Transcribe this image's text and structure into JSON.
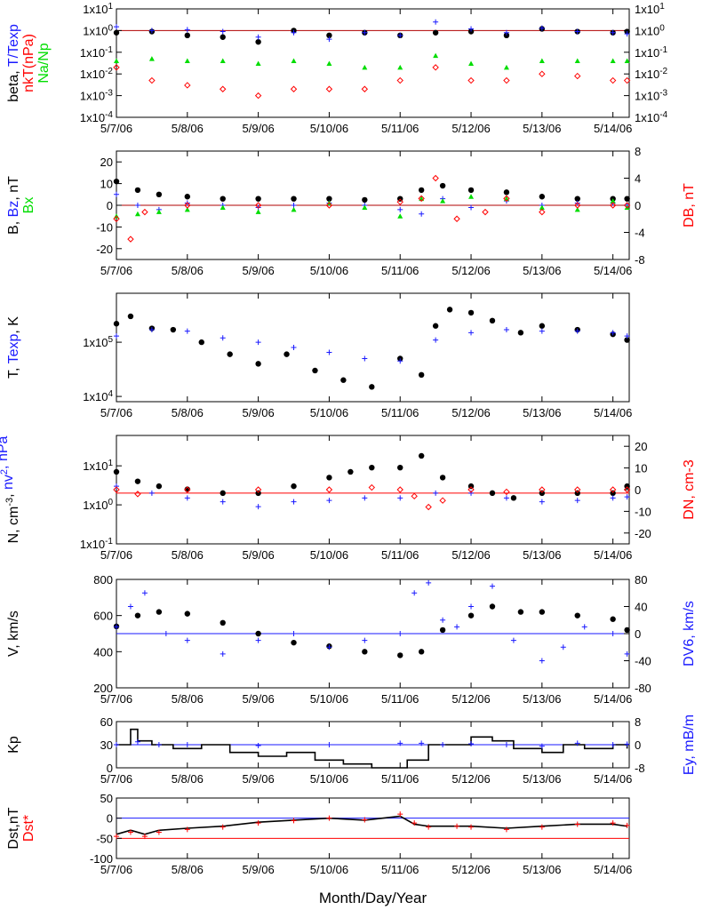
{
  "x_axis": {
    "title": "Month/Day/Year",
    "tick_labels": [
      "5/7/06",
      "5/8/06",
      "5/9/06",
      "5/10/06",
      "5/11/06",
      "5/12/06",
      "5/13/06",
      "5/14/06"
    ],
    "range_days": [
      0,
      7.23
    ]
  },
  "colors": {
    "black": "#000000",
    "blue": "#1a1aff",
    "red": "#ff0000",
    "green": "#00dd00",
    "darkred": "#b00000"
  },
  "chart_data": [
    {
      "name": "beta panel",
      "type": "scatter",
      "ylabel_parts": [
        {
          "text": "beta, ",
          "color": "black",
          "col": 0
        },
        {
          "text": "T/Texp",
          "color": "blue",
          "col": 0
        },
        {
          "text": "nkT(nPa)",
          "color": "red",
          "col": 1
        },
        {
          "text": "Na/Np",
          "color": "green",
          "col": 2
        }
      ],
      "y_log": true,
      "ylim": [
        0.0001,
        10
      ],
      "yticks_left": [
        "1x10-4",
        "1x10-3",
        "1x10-2",
        "1x10-1",
        "1x100",
        "1x101"
      ],
      "yticks_right": [
        "1x10-4",
        "1x10-3",
        "1x10-2",
        "1x10-1",
        "1x100",
        "1x101"
      ],
      "hline": {
        "y": 1,
        "color": "darkred"
      },
      "series": [
        {
          "color": "black",
          "marker": "dot",
          "x": [
            0,
            0.5,
            1,
            1.5,
            2,
            2.5,
            3,
            3.5,
            4,
            4.5,
            5,
            5.5,
            6,
            6.5,
            7,
            7.2
          ],
          "y": [
            0.8,
            0.9,
            0.6,
            0.5,
            0.3,
            1.0,
            0.6,
            0.8,
            0.6,
            0.8,
            0.9,
            0.6,
            1.2,
            0.9,
            0.8,
            0.9
          ]
        },
        {
          "color": "blue",
          "marker": "plus",
          "x": [
            0,
            0.5,
            1,
            1.5,
            2,
            2.5,
            3,
            3.5,
            4,
            4.5,
            5,
            5.5,
            6,
            6.5,
            7,
            7.2
          ],
          "y": [
            1.5,
            1.0,
            1.1,
            0.9,
            0.5,
            0.8,
            0.4,
            0.8,
            0.6,
            2.5,
            1.2,
            0.8,
            1.3,
            0.9,
            0.8,
            0.7
          ]
        },
        {
          "color": "red",
          "marker": "diamond",
          "x": [
            0,
            0.5,
            1,
            1.5,
            2,
            2.5,
            3,
            3.5,
            4,
            4.5,
            5,
            5.5,
            6,
            6.5,
            7,
            7.2
          ],
          "y": [
            0.02,
            0.005,
            0.003,
            0.002,
            0.001,
            0.002,
            0.002,
            0.002,
            0.005,
            0.02,
            0.005,
            0.005,
            0.01,
            0.008,
            0.005,
            0.005
          ]
        },
        {
          "color": "green",
          "marker": "tri",
          "x": [
            0,
            0.5,
            1,
            1.5,
            2,
            2.5,
            3,
            3.5,
            4,
            4.5,
            5,
            5.5,
            6,
            6.5,
            7,
            7.2
          ],
          "y": [
            0.04,
            0.05,
            0.04,
            0.04,
            0.03,
            0.04,
            0.03,
            0.02,
            0.02,
            0.07,
            0.03,
            0.02,
            0.04,
            0.04,
            0.04,
            0.04
          ]
        }
      ]
    },
    {
      "name": "B panel",
      "type": "scatter",
      "ylabel_parts": [
        {
          "text": "B, ",
          "color": "black",
          "col": 0
        },
        {
          "text": "Bz",
          "color": "blue",
          "col": 0
        },
        {
          "text": ", nT",
          "color": "black",
          "col": 0
        },
        {
          "text": "Bx",
          "color": "green",
          "col": 1
        }
      ],
      "ylabel_right": {
        "text": "DB, nT",
        "color": "red"
      },
      "y_log": false,
      "ylim": [
        -25,
        25
      ],
      "yticks_left": [
        -20,
        -10,
        0,
        10,
        20
      ],
      "ylim_right": [
        -8,
        8
      ],
      "yticks_right": [
        -8,
        -4,
        0,
        4,
        8
      ],
      "hline": {
        "y": 0,
        "color": "darkred"
      },
      "series": [
        {
          "color": "black",
          "marker": "dot",
          "x": [
            0,
            0.3,
            0.6,
            1,
            1.5,
            2,
            2.5,
            3,
            3.5,
            4,
            4.3,
            4.6,
            5,
            5.5,
            6,
            6.5,
            7,
            7.2
          ],
          "y": [
            11,
            7,
            5,
            4,
            3,
            3,
            3,
            3,
            2.5,
            3,
            7,
            9,
            7,
            6,
            4,
            3,
            3,
            3
          ]
        },
        {
          "color": "blue",
          "marker": "plus",
          "x": [
            0,
            0.3,
            0.6,
            1,
            1.5,
            2,
            2.5,
            3,
            3.5,
            4,
            4.3,
            4.6,
            5,
            5.5,
            6,
            6.5,
            7,
            7.2
          ],
          "y": [
            5,
            0,
            -2,
            1,
            0,
            -1,
            0,
            1,
            0,
            -2,
            -4,
            3,
            -1,
            2,
            0,
            1,
            1,
            0
          ]
        },
        {
          "color": "green",
          "marker": "tri",
          "x": [
            0,
            0.3,
            0.6,
            1,
            1.5,
            2,
            2.5,
            3,
            3.5,
            4,
            4.3,
            4.6,
            5,
            5.5,
            6,
            6.5,
            7,
            7.2
          ],
          "y": [
            -5,
            -4,
            -3,
            -2,
            -1,
            -3,
            -2,
            1,
            -1,
            -5,
            3,
            2,
            4,
            3,
            -1,
            -2,
            2,
            -1
          ]
        },
        {
          "color": "red",
          "marker": "diamond",
          "axis": "right",
          "x": [
            0,
            0.2,
            0.4,
            1,
            2,
            3,
            4,
            4.3,
            4.5,
            4.8,
            5.2,
            5.5,
            6,
            6.5,
            7,
            7.2
          ],
          "y": [
            -2,
            -5,
            -1,
            0,
            0,
            0,
            0.5,
            1,
            4,
            -2,
            -1,
            1,
            -1,
            0,
            0,
            0
          ]
        }
      ]
    },
    {
      "name": "T panel",
      "type": "scatter",
      "ylabel_parts": [
        {
          "text": "T, ",
          "color": "black",
          "col": 0
        },
        {
          "text": "Texp",
          "color": "blue",
          "col": 0
        },
        {
          "text": ", K",
          "color": "black",
          "col": 0
        }
      ],
      "y_log": true,
      "ylim": [
        8000,
        800000
      ],
      "yticks_left": [
        "1x104",
        "1x105"
      ],
      "yticks_left_values": [
        10000,
        100000
      ],
      "series": [
        {
          "color": "black",
          "marker": "dot",
          "x": [
            0,
            0.2,
            0.5,
            0.8,
            1.2,
            1.6,
            2,
            2.4,
            2.8,
            3.2,
            3.6,
            4,
            4.3,
            4.5,
            4.7,
            5,
            5.3,
            5.7,
            6,
            6.5,
            7,
            7.2
          ],
          "y": [
            220000,
            300000,
            180000,
            170000,
            100000,
            60000,
            40000,
            60000,
            30000,
            20000,
            15000,
            50000,
            25000,
            200000,
            400000,
            350000,
            250000,
            150000,
            200000,
            170000,
            140000,
            110000
          ]
        },
        {
          "color": "blue",
          "marker": "plus",
          "x": [
            0,
            0.5,
            1,
            1.5,
            2,
            2.5,
            3,
            3.5,
            4,
            4.5,
            5,
            5.5,
            6,
            6.5,
            7,
            7.2
          ],
          "y": [
            130000,
            170000,
            160000,
            120000,
            100000,
            80000,
            65000,
            50000,
            45000,
            110000,
            150000,
            170000,
            160000,
            160000,
            150000,
            130000
          ]
        }
      ]
    },
    {
      "name": "N panel",
      "type": "scatter",
      "ylabel_parts": [
        {
          "text": "N, cm",
          "color": "black",
          "col": 0
        },
        {
          "text": "-3",
          "color": "black",
          "col": 0,
          "sup": true
        },
        {
          "text": ", ",
          "color": "black",
          "col": 0
        },
        {
          "text": "nv",
          "color": "blue",
          "col": 0
        },
        {
          "text": "2",
          "color": "blue",
          "col": 0,
          "sup": true
        },
        {
          "text": ", nPa",
          "color": "blue",
          "col": 0
        }
      ],
      "ylabel_right": {
        "text": "DN, cm-3",
        "color": "red"
      },
      "y_log": true,
      "ylim": [
        0.1,
        60
      ],
      "yticks_left": [
        "1x10-1",
        "1x100",
        "1x101"
      ],
      "yticks_left_values": [
        0.1,
        1,
        10
      ],
      "ylim_right": [
        -25,
        25
      ],
      "yticks_right": [
        -20,
        -10,
        0,
        10,
        20
      ],
      "hline": {
        "y": 2,
        "color": "red"
      },
      "series": [
        {
          "color": "black",
          "marker": "dot",
          "x": [
            0,
            0.3,
            0.6,
            1,
            1.5,
            2,
            2.5,
            3,
            3.3,
            3.6,
            4,
            4.3,
            4.6,
            5,
            5.3,
            5.6,
            6,
            6.5,
            7,
            7.2
          ],
          "y": [
            7,
            4,
            3,
            2.5,
            2,
            2,
            3,
            5,
            7,
            9,
            9,
            18,
            5,
            3,
            2,
            1.5,
            2,
            2,
            2,
            3
          ]
        },
        {
          "color": "blue",
          "marker": "plus",
          "x": [
            0,
            0.5,
            1,
            1.5,
            2,
            2.5,
            3,
            3.5,
            4,
            4.5,
            5,
            5.5,
            6,
            6.5,
            7,
            7.2
          ],
          "y": [
            3,
            2,
            1.5,
            1.2,
            0.9,
            1.2,
            1.3,
            1.5,
            1.5,
            2,
            2,
            1.5,
            1.2,
            1.3,
            1.5,
            1.6
          ]
        },
        {
          "color": "red",
          "marker": "diamond",
          "axis": "right",
          "x": [
            0,
            0.3,
            1,
            2,
            3,
            3.6,
            4,
            4.2,
            4.4,
            4.6,
            5,
            5.5,
            6,
            6.5,
            7,
            7.2
          ],
          "y": [
            0,
            -2,
            0,
            0,
            0,
            1,
            0,
            -3,
            -8,
            -5,
            0,
            -1,
            0,
            0,
            0,
            0
          ]
        }
      ]
    },
    {
      "name": "V panel",
      "type": "scatter",
      "ylabel_parts": [
        {
          "text": "V, km/s",
          "color": "black",
          "col": 0
        }
      ],
      "ylabel_right": {
        "text": "DV6, km/s",
        "color": "blue"
      },
      "y_log": false,
      "ylim": [
        200,
        800
      ],
      "yticks_left": [
        200,
        400,
        600,
        800
      ],
      "ylim_right": [
        -80,
        80
      ],
      "yticks_right": [
        -80,
        -40,
        0,
        40,
        80
      ],
      "hline": {
        "y": 500,
        "color": "blue"
      },
      "series": [
        {
          "color": "black",
          "marker": "dot",
          "x": [
            0,
            0.3,
            0.6,
            1,
            1.5,
            2,
            2.5,
            3,
            3.5,
            4,
            4.3,
            4.6,
            5,
            5.3,
            5.7,
            6,
            6.5,
            7,
            7.2
          ],
          "y": [
            540,
            600,
            620,
            610,
            560,
            500,
            450,
            430,
            400,
            380,
            400,
            520,
            600,
            650,
            620,
            620,
            600,
            580,
            520
          ]
        },
        {
          "color": "blue",
          "marker": "plus",
          "axis": "right",
          "x": [
            0,
            0.2,
            0.4,
            0.7,
            1,
            1.5,
            2,
            2.5,
            3,
            3.5,
            4,
            4.2,
            4.4,
            4.6,
            4.8,
            5,
            5.3,
            5.6,
            6,
            6.3,
            6.6,
            7,
            7.2
          ],
          "y": [
            10,
            40,
            60,
            0,
            -10,
            -30,
            -10,
            0,
            -20,
            -10,
            0,
            60,
            75,
            20,
            10,
            40,
            70,
            -10,
            -40,
            -20,
            10,
            0,
            -30
          ]
        }
      ]
    },
    {
      "name": "Kp panel",
      "type": "line",
      "ylabel_parts": [
        {
          "text": "Kp",
          "color": "black",
          "col": 0
        }
      ],
      "ylabel_right": {
        "text": "Ey, mB/m",
        "color": "blue"
      },
      "y_log": false,
      "ylim": [
        0,
        60
      ],
      "yticks_left": [
        0,
        30,
        60
      ],
      "ylim_right": [
        -8,
        8
      ],
      "yticks_right": [
        -8,
        0,
        8
      ],
      "hline": {
        "y": 30,
        "color": "blue"
      },
      "series": [
        {
          "color": "black",
          "marker": "step",
          "x": [
            0,
            0.2,
            0.3,
            0.5,
            0.8,
            1.2,
            1.6,
            2,
            2.4,
            2.8,
            3.2,
            3.6,
            3.9,
            4.1,
            4.4,
            5,
            5.3,
            5.6,
            6,
            6.3,
            6.6,
            7,
            7.2
          ],
          "y": [
            30,
            50,
            35,
            30,
            25,
            30,
            20,
            15,
            20,
            10,
            5,
            0,
            0,
            10,
            30,
            40,
            35,
            25,
            20,
            30,
            25,
            30,
            25
          ]
        },
        {
          "color": "blue",
          "marker": "plus",
          "axis": "right",
          "x": [
            0,
            0.3,
            0.6,
            1,
            2,
            3,
            4,
            4.3,
            4.6,
            5,
            5.5,
            6,
            6.5,
            7,
            7.2
          ],
          "y": [
            0,
            1,
            0,
            0,
            -0.3,
            0,
            0.5,
            0.5,
            0,
            0.3,
            0,
            -0.5,
            0.5,
            0,
            0.2
          ]
        }
      ]
    },
    {
      "name": "Dst panel",
      "type": "line",
      "ylabel_parts": [
        {
          "text": "Dst,nT",
          "color": "black",
          "col": 0
        },
        {
          "text": "Dst*",
          "color": "red",
          "col": 1
        }
      ],
      "y_log": false,
      "ylim": [
        -100,
        50
      ],
      "yticks_left": [
        -100,
        -50,
        0,
        50
      ],
      "hline": {
        "y": 0,
        "color": "blue"
      },
      "hline2": {
        "y": -50,
        "color": "red"
      },
      "series": [
        {
          "color": "black",
          "marker": "line",
          "x": [
            0,
            0.2,
            0.4,
            0.6,
            1,
            1.5,
            2,
            2.5,
            3,
            3.5,
            4,
            4.2,
            4.4,
            4.8,
            5,
            5.5,
            6,
            6.5,
            7,
            7.2
          ],
          "y": [
            -40,
            -30,
            -40,
            -30,
            -25,
            -20,
            -10,
            -5,
            0,
            -5,
            5,
            -15,
            -20,
            -20,
            -20,
            -25,
            -20,
            -15,
            -15,
            -20
          ]
        },
        {
          "color": "red",
          "marker": "plus",
          "x": [
            0,
            0.2,
            0.4,
            0.6,
            1,
            1.5,
            2,
            2.5,
            3,
            3.5,
            4,
            4.2,
            4.4,
            4.8,
            5,
            5.5,
            6,
            6.5,
            7,
            7.2
          ],
          "y": [
            -45,
            -35,
            -45,
            -35,
            -28,
            -22,
            -12,
            -6,
            0,
            -4,
            10,
            -12,
            -22,
            -20,
            -22,
            -28,
            -22,
            -15,
            -12,
            -18
          ]
        }
      ]
    }
  ]
}
